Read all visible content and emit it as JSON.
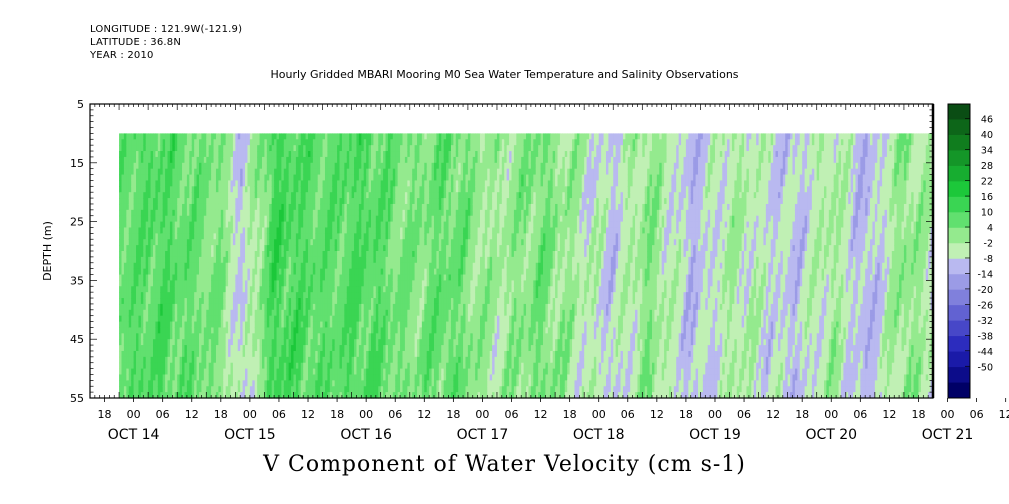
{
  "header": {
    "longitude": "LONGITUDE : 121.9W(-121.9)",
    "latitude": "LATITUDE : 36.8N",
    "year": "YEAR : 2010"
  },
  "chart_data": {
    "type": "heatmap",
    "title": "Hourly Gridded MBARI Mooring M0 Sea Water Temperature and Salinity Observations",
    "xlabel": "V Component of Water Velocity (cm s-1)",
    "ylabel": "DEPTH (m)",
    "x_range_hours": [
      0,
      174
    ],
    "ylim": [
      5,
      55
    ],
    "y_ticks": [
      5,
      15,
      25,
      35,
      45,
      55
    ],
    "y_reversed": true,
    "data_depth_range": [
      10,
      55
    ],
    "data_start_hour": 6,
    "hour_ticks": [
      "18",
      "00",
      "06",
      "12",
      "18",
      "00",
      "06",
      "12",
      "18",
      "00",
      "06",
      "12",
      "18",
      "00",
      "06",
      "12",
      "18",
      "00",
      "06",
      "12",
      "18",
      "00",
      "06",
      "12",
      "18",
      "00",
      "06",
      "12",
      "18",
      "00",
      "06",
      "12"
    ],
    "date_labels": [
      "OCT 14",
      "OCT 15",
      "OCT 16",
      "OCT 17",
      "OCT 18",
      "OCT 19",
      "OCT 20",
      "OCT 21"
    ],
    "colorbar": {
      "labels": [
        "46",
        "40",
        "34",
        "28",
        "22",
        "16",
        "10",
        "4",
        "-2",
        "-8",
        "-14",
        "-20",
        "-26",
        "-32",
        "-38",
        "-44",
        "-50"
      ],
      "levels_top_to_bottom": [
        "#0a4d14",
        "#0d6619",
        "#107d1e",
        "#149628",
        "#17ad30",
        "#1cc83a",
        "#3ad553",
        "#61e06f",
        "#94ea8e",
        "#c0f0b4",
        "#b9b9f0",
        "#9b9be6",
        "#8080dc",
        "#6262d2",
        "#4747c8",
        "#2c2cbe",
        "#1a1aa8",
        "#0c0c8a",
        "#000066"
      ]
    },
    "field_columns": [
      {
        "hour": 6,
        "mean": 10,
        "amp": 3
      },
      {
        "hour": 15,
        "mean": 12,
        "amp": 5
      },
      {
        "hour": 27,
        "mean": 6,
        "amp": 4
      },
      {
        "hour": 31,
        "mean": -5,
        "amp": 4
      },
      {
        "hour": 38,
        "mean": 14,
        "amp": 5
      },
      {
        "hour": 48,
        "mean": 10,
        "amp": 4
      },
      {
        "hour": 57,
        "mean": 12,
        "amp": 5
      },
      {
        "hour": 66,
        "mean": 6,
        "amp": 5
      },
      {
        "hour": 74,
        "mean": 10,
        "amp": 5
      },
      {
        "hour": 83,
        "mean": 2,
        "amp": 5
      },
      {
        "hour": 93,
        "mean": 8,
        "amp": 5
      },
      {
        "hour": 100,
        "mean": 2,
        "amp": 6
      },
      {
        "hour": 108,
        "mean": -4,
        "amp": 5
      },
      {
        "hour": 115,
        "mean": 6,
        "amp": 5
      },
      {
        "hour": 124,
        "mean": -6,
        "amp": 4
      },
      {
        "hour": 133,
        "mean": 2,
        "amp": 5
      },
      {
        "hour": 145,
        "mean": -5,
        "amp": 5
      },
      {
        "hour": 153,
        "mean": 3,
        "amp": 5
      },
      {
        "hour": 160,
        "mean": -7,
        "amp": 4
      },
      {
        "hour": 168,
        "mean": 6,
        "amp": 5
      },
      {
        "hour": 174,
        "mean": 0,
        "amp": 5
      }
    ]
  }
}
